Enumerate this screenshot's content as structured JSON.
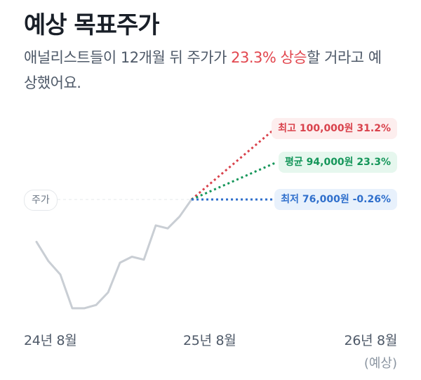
{
  "title": "예상 목표주가",
  "description": {
    "prefix": "애널리스트들이 12개월 뒤 주가가 ",
    "highlight": "23.3% 상승",
    "suffix": "할 거라고 예상했어요."
  },
  "colors": {
    "price_line": "#c9ced4",
    "high": "#d9424c",
    "avg": "#15965a",
    "low": "#2f6fcc"
  },
  "chart_data": {
    "type": "line",
    "title": "",
    "xlabel": "",
    "ylabel": "",
    "x_ticks": [
      {
        "label": "24년 8월",
        "sub": ""
      },
      {
        "label": "25년 8월",
        "sub": ""
      },
      {
        "label": "26년 8월",
        "sub": "(예상)"
      }
    ],
    "price_series": [
      {
        "t": 0,
        "v": 62000
      },
      {
        "t": 0.75,
        "v": 55500
      },
      {
        "t": 1.5,
        "v": 51000
      },
      {
        "t": 2.25,
        "v": 39700
      },
      {
        "t": 3,
        "v": 39700
      },
      {
        "t": 3.75,
        "v": 40800
      },
      {
        "t": 4.5,
        "v": 45000
      },
      {
        "t": 5.25,
        "v": 55000
      },
      {
        "t": 6,
        "v": 57000
      },
      {
        "t": 6.75,
        "v": 56000
      },
      {
        "t": 7.5,
        "v": 67500
      },
      {
        "t": 8.25,
        "v": 66500
      },
      {
        "t": 9,
        "v": 70500
      },
      {
        "t": 9.75,
        "v": 76200
      }
    ],
    "current_price_label": "주가",
    "targets": [
      {
        "key": "high",
        "label": "최고 100,000원 31.2%",
        "value": 100000
      },
      {
        "key": "avg",
        "label": "평균 94,000원 23.3%",
        "value": 94000
      },
      {
        "key": "low",
        "label": "최저 76,000원 -0.26%",
        "value": 76000
      }
    ]
  }
}
